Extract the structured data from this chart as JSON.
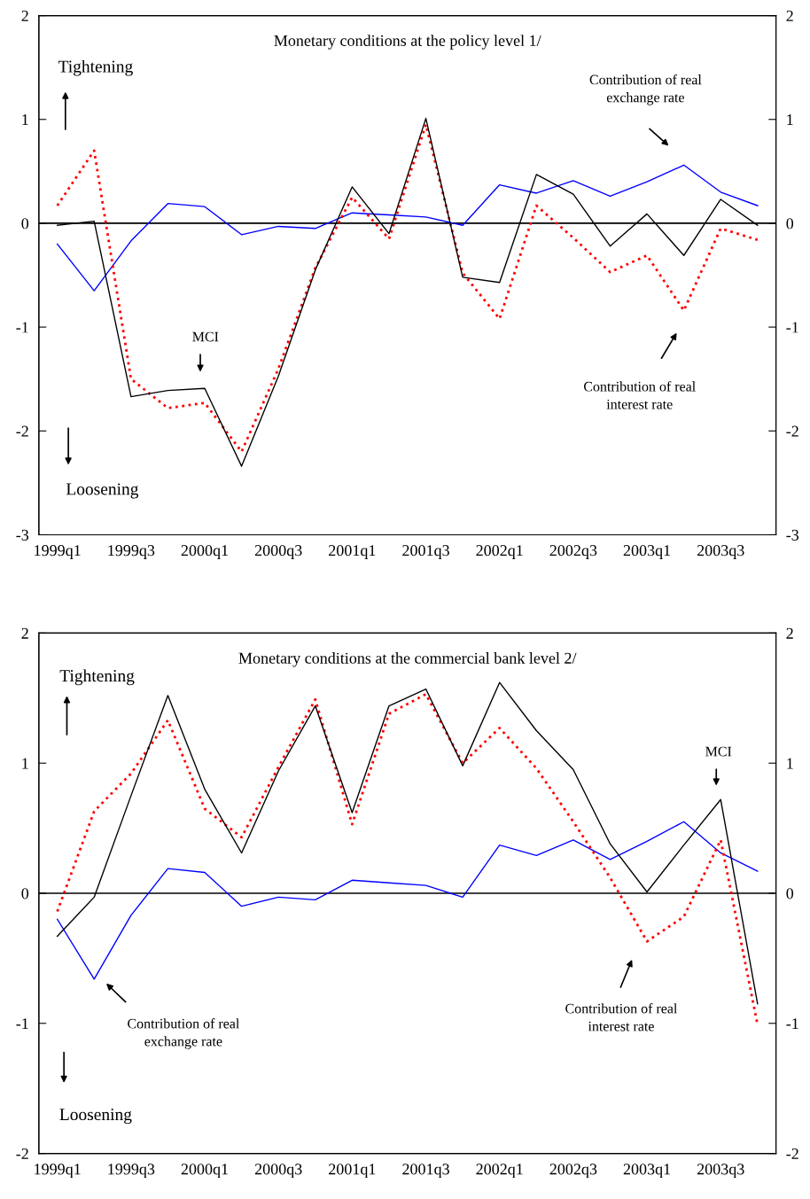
{
  "chart_data": [
    {
      "type": "line",
      "title": "Monetary conditions at the policy level 1/",
      "categories": [
        "1999q1",
        null,
        "1999q3",
        null,
        "2000q1",
        null,
        "2000q3",
        null,
        "2001q1",
        null,
        "2001q3",
        null,
        "2002q1",
        null,
        "2002q3",
        null,
        "2003q1",
        null,
        "2003q3",
        null
      ],
      "series": [
        {
          "color": "#0000ff",
          "line_style": "solid",
          "values": [
            -0.2,
            -0.65,
            -0.17,
            0.19,
            0.16,
            -0.11,
            -0.03,
            -0.05,
            0.1,
            0.08,
            0.06,
            -0.02,
            0.37,
            0.29,
            0.41,
            0.26,
            0.4,
            0.56,
            0.3,
            0.17
          ]
        },
        {
          "color": "#ff0000",
          "line_style": "dotted",
          "values": [
            0.17,
            0.7,
            -1.5,
            -1.78,
            -1.73,
            -2.2,
            -1.4,
            -0.43,
            0.25,
            -0.15,
            0.95,
            -0.48,
            -0.92,
            0.17,
            -0.14,
            -0.47,
            -0.31,
            -0.84,
            -0.05,
            -0.16
          ]
        },
        {
          "color": "#000000",
          "line_style": "solid",
          "values": [
            -0.02,
            0.02,
            -1.67,
            -1.61,
            -1.59,
            -2.34,
            -1.47,
            -0.45,
            0.35,
            -0.1,
            1.01,
            -0.52,
            -0.57,
            0.47,
            0.28,
            -0.22,
            0.09,
            -0.31,
            0.23,
            -0.02
          ]
        }
      ],
      "ylim": [
        -3,
        2
      ],
      "yticks": [
        -3,
        -2,
        -1,
        0,
        1,
        2
      ],
      "y2lim": [
        -3,
        2
      ],
      "y2ticks": [
        -3,
        -2,
        -1,
        0,
        1,
        2
      ],
      "ref_lines": [
        {
          "axis": "y",
          "value": 0,
          "color": "#000000",
          "line_style": "solid"
        }
      ],
      "annotations": [
        "Tightening",
        "Loosening",
        "Contribution of real\nexchange rate",
        "Contribution of real\ninterest rate",
        "MCI"
      ],
      "grid": false,
      "legend": false,
      "marker": "none"
    },
    {
      "type": "line",
      "title": "Monetary conditions at the commercial bank level 2/",
      "categories": [
        "1999q1",
        null,
        "1999q3",
        null,
        "2000q1",
        null,
        "2000q3",
        null,
        "2001q1",
        null,
        "2001q3",
        null,
        "2002q1",
        null,
        "2002q3",
        null,
        "2003q1",
        null,
        "2003q3",
        null
      ],
      "series": [
        {
          "color": "#0000ff",
          "line_style": "solid",
          "values": [
            -0.2,
            -0.66,
            -0.17,
            0.19,
            0.16,
            -0.1,
            -0.03,
            -0.05,
            0.1,
            0.08,
            0.06,
            -0.03,
            0.37,
            0.29,
            0.41,
            0.26,
            0.4,
            0.55,
            0.31,
            0.17
          ]
        },
        {
          "color": "#ff0000",
          "line_style": "dotted",
          "values": [
            -0.14,
            0.63,
            0.92,
            1.33,
            0.65,
            0.43,
            0.97,
            1.49,
            0.53,
            1.38,
            1.53,
            1.0,
            1.27,
            0.96,
            0.55,
            0.12,
            -0.37,
            -0.18,
            0.41,
            -1.01
          ]
        },
        {
          "color": "#000000",
          "line_style": "solid",
          "values": [
            -0.33,
            -0.03,
            0.75,
            1.52,
            0.8,
            0.31,
            0.94,
            1.44,
            0.62,
            1.44,
            1.57,
            0.98,
            1.62,
            1.25,
            0.95,
            0.38,
            0.01,
            0.37,
            0.72,
            -0.85
          ]
        }
      ],
      "ylim": [
        -2,
        2
      ],
      "yticks": [
        -2,
        -1,
        0,
        1,
        2
      ],
      "y2lim": [
        -2,
        2
      ],
      "y2ticks": [
        -2,
        -1,
        0,
        1,
        2
      ],
      "ref_lines": [
        {
          "axis": "y",
          "value": 0,
          "color": "#000000",
          "line_style": "solid"
        }
      ],
      "annotations": [
        "Tightening",
        "Loosening",
        "Contribution of real\nexchange rate",
        "Contribution of real\ninterest rate",
        "MCI"
      ],
      "grid": false,
      "legend": false,
      "marker": "none"
    }
  ]
}
